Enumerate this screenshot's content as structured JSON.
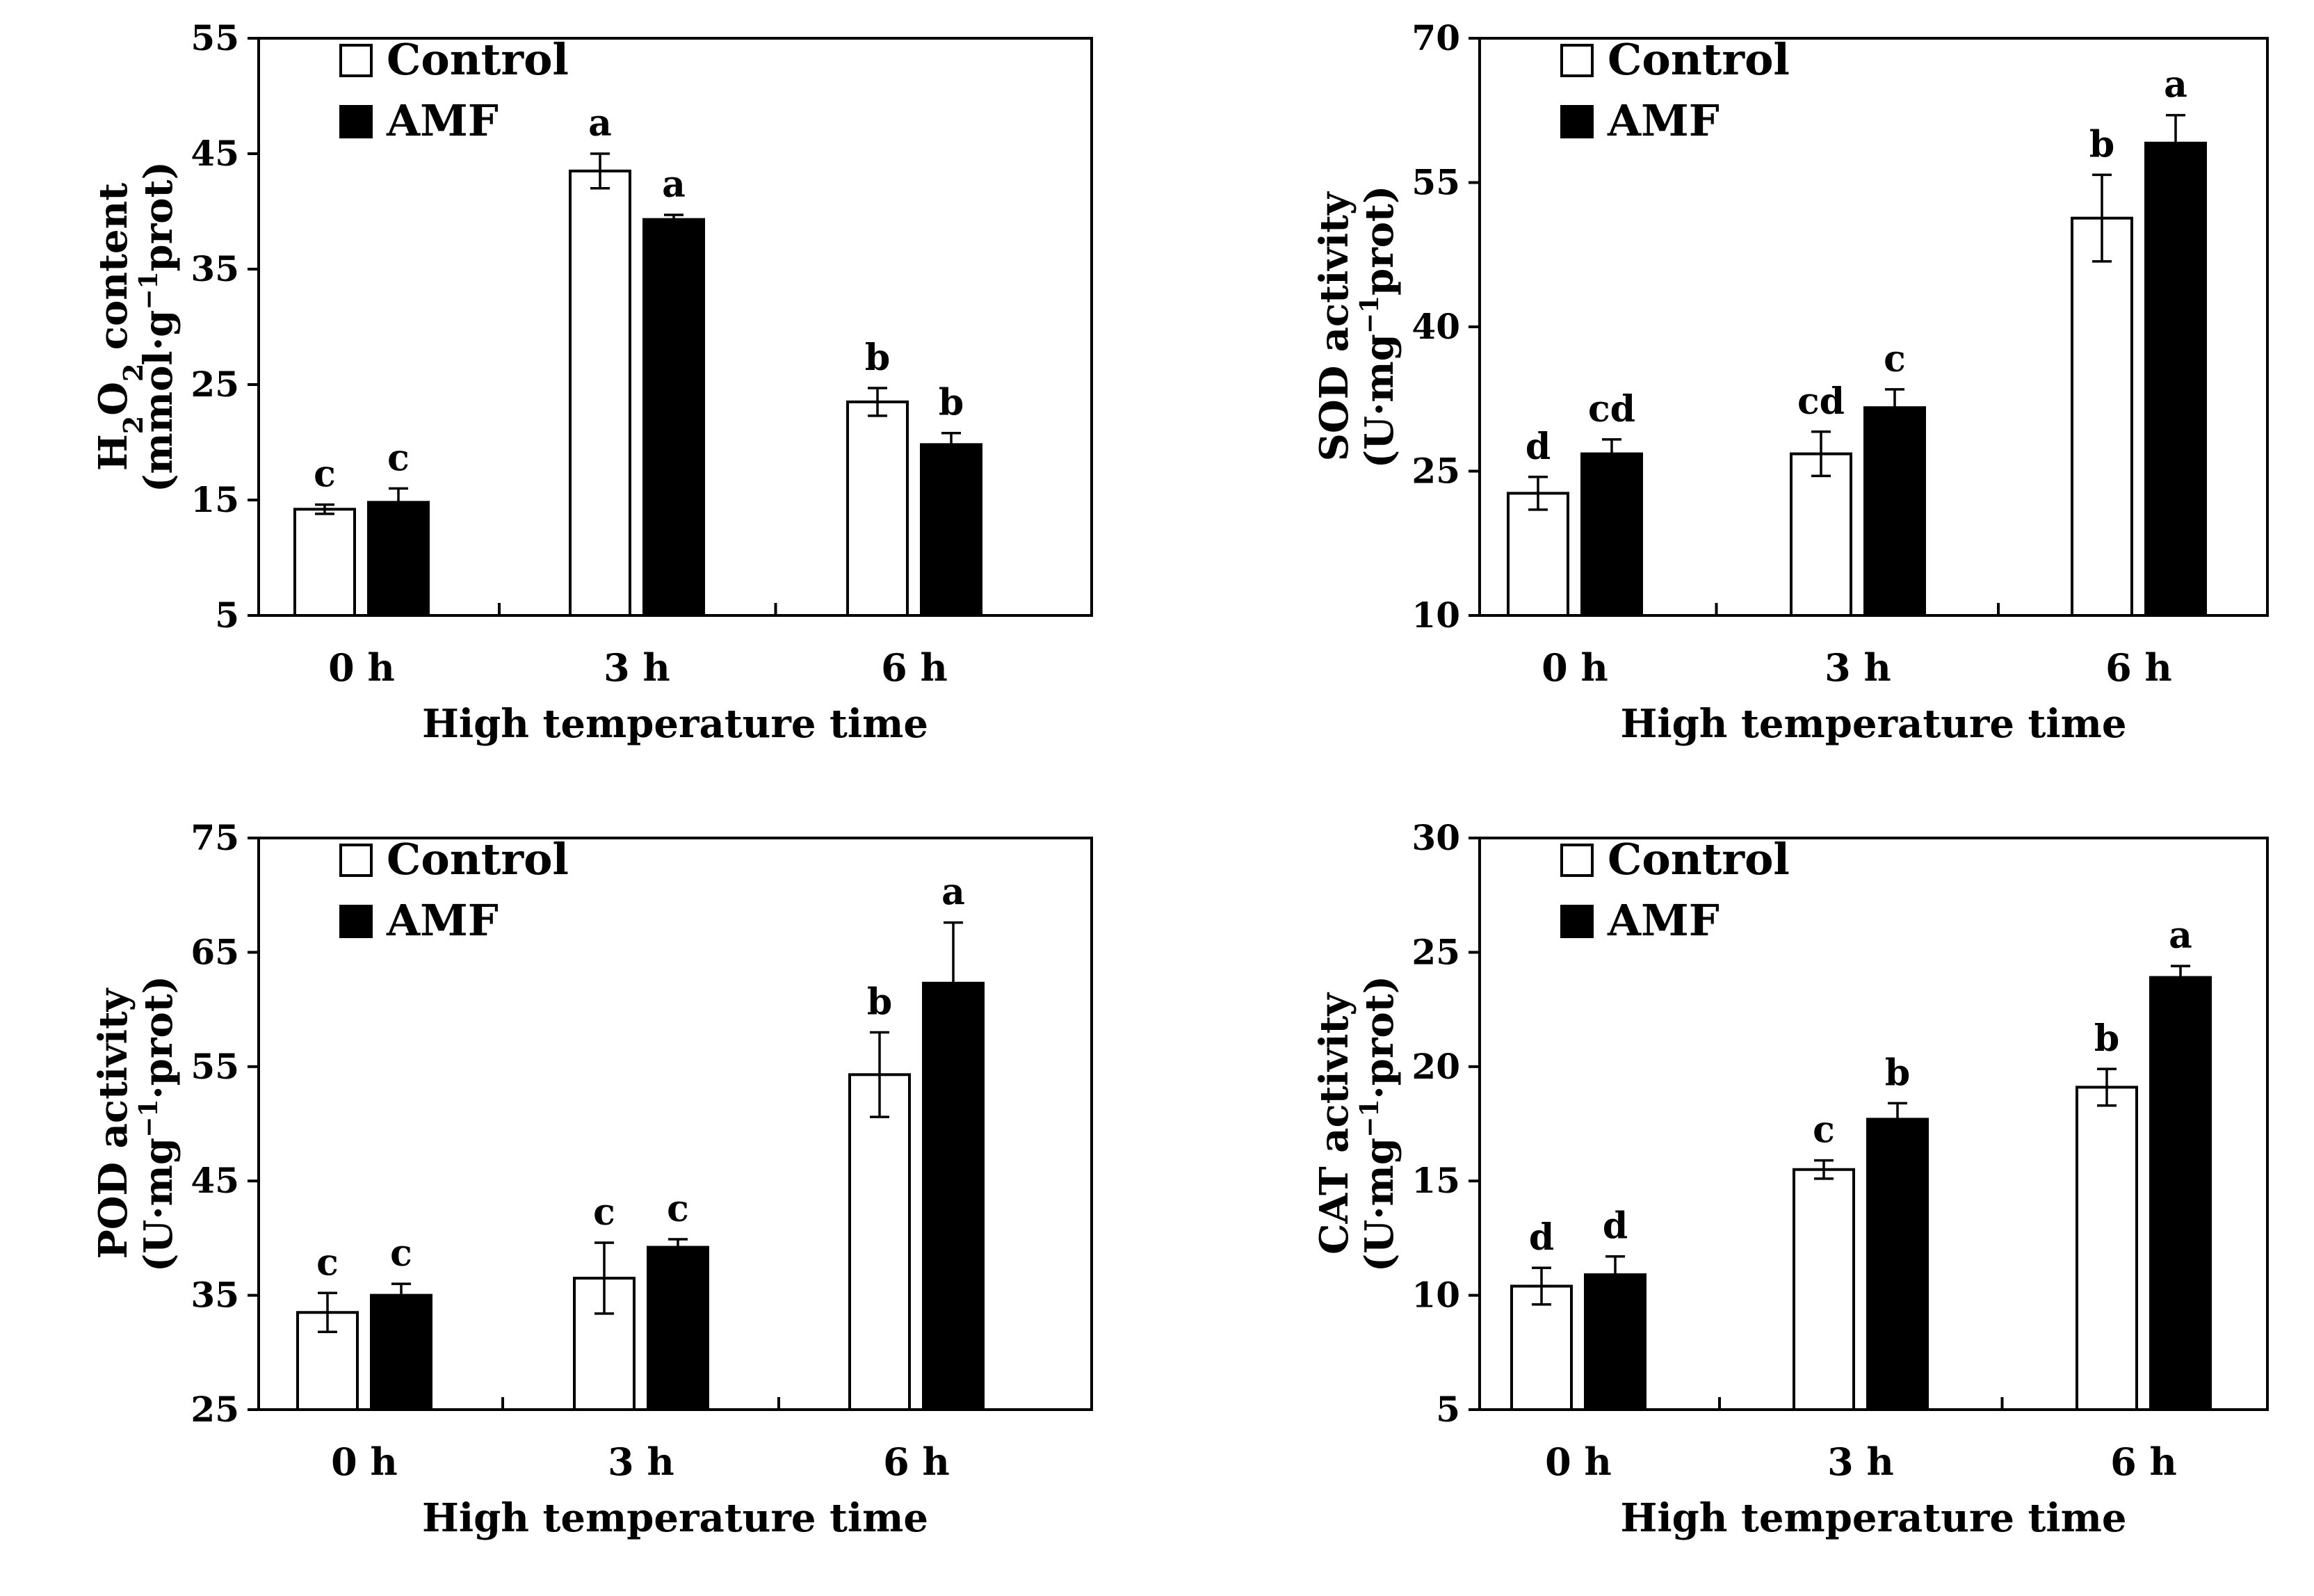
{
  "figure": {
    "series_names": [
      "Control",
      "AMF"
    ],
    "colors": {
      "control": "#ffffff",
      "amf": "#000000",
      "stroke": "#000000"
    }
  },
  "chart_data": [
    {
      "id": "h2o2",
      "type": "bar",
      "categories": [
        "0 h",
        "3 h",
        "6 h"
      ],
      "xlabel": "High temperature time",
      "ylabel_line1_parts": [
        "H",
        "2",
        "O",
        "2",
        " content"
      ],
      "ylabel_line2": "(mmol·g",
      "ylabel_line2_sup": "−1",
      "ylabel_line2_end": "prot)",
      "ylim": [
        5,
        55
      ],
      "yticks": [
        5,
        15,
        25,
        35,
        45,
        55
      ],
      "series": [
        {
          "name": "Control",
          "values": [
            14.2,
            43.5,
            23.5
          ],
          "errors": [
            0.4,
            1.5,
            1.2
          ],
          "labels": [
            "c",
            "a",
            "b"
          ]
        },
        {
          "name": "AMF",
          "values": [
            14.8,
            39.3,
            19.8
          ],
          "errors": [
            1.2,
            0.4,
            1.0
          ],
          "labels": [
            "c",
            "a",
            "b"
          ]
        }
      ],
      "legend": "top-left"
    },
    {
      "id": "sod",
      "type": "bar",
      "categories": [
        "0 h",
        "3 h",
        "6 h"
      ],
      "xlabel": "High temperature time",
      "ylabel_line1": "SOD activity",
      "ylabel_line2": "(U·mg",
      "ylabel_line2_sup": "−1",
      "ylabel_line2_end": "prot)",
      "ylim": [
        10,
        70
      ],
      "yticks": [
        10,
        25,
        40,
        55,
        70
      ],
      "series": [
        {
          "name": "Control",
          "values": [
            22.7,
            26.8,
            51.3
          ],
          "errors": [
            1.7,
            2.3,
            4.5
          ],
          "labels": [
            "d",
            "cd",
            "b"
          ]
        },
        {
          "name": "AMF",
          "values": [
            26.8,
            31.6,
            59.1
          ],
          "errors": [
            1.5,
            1.9,
            2.9
          ],
          "labels": [
            "cd",
            "c",
            "a"
          ]
        }
      ],
      "legend": "top-left"
    },
    {
      "id": "pod",
      "type": "bar",
      "categories": [
        "0 h",
        "3 h",
        "6 h"
      ],
      "xlabel": "High temperature time",
      "ylabel_line1": "POD activity",
      "ylabel_line2": "(U·mg",
      "ylabel_line2_sup": "−1",
      "ylabel_line2_end": "·prot)",
      "ylim": [
        25,
        75
      ],
      "yticks": [
        25,
        35,
        45,
        55,
        65,
        75
      ],
      "series": [
        {
          "name": "Control",
          "values": [
            33.5,
            36.5,
            54.3
          ],
          "errors": [
            1.7,
            3.1,
            3.7
          ],
          "labels": [
            "c",
            "c",
            "b"
          ]
        },
        {
          "name": "AMF",
          "values": [
            35.0,
            39.2,
            62.3
          ],
          "errors": [
            1.0,
            0.7,
            5.3
          ],
          "labels": [
            "c",
            "c",
            "a"
          ]
        }
      ],
      "legend": "top-left"
    },
    {
      "id": "cat",
      "type": "bar",
      "categories": [
        "0 h",
        "3 h",
        "6 h"
      ],
      "xlabel": "High temperature time",
      "ylabel_line1": "CAT activity",
      "ylabel_line2": "(U·mg",
      "ylabel_line2_sup": "−1",
      "ylabel_line2_end": "·prot)",
      "ylim": [
        5,
        30
      ],
      "yticks": [
        5,
        10,
        15,
        20,
        25,
        30
      ],
      "series": [
        {
          "name": "Control",
          "values": [
            10.4,
            15.5,
            19.1
          ],
          "errors": [
            0.8,
            0.4,
            0.8
          ],
          "labels": [
            "d",
            "c",
            "b"
          ]
        },
        {
          "name": "AMF",
          "values": [
            10.9,
            17.7,
            23.9
          ],
          "errors": [
            0.8,
            0.7,
            0.5
          ],
          "labels": [
            "d",
            "b",
            "a"
          ]
        }
      ],
      "legend": "top-left"
    }
  ]
}
